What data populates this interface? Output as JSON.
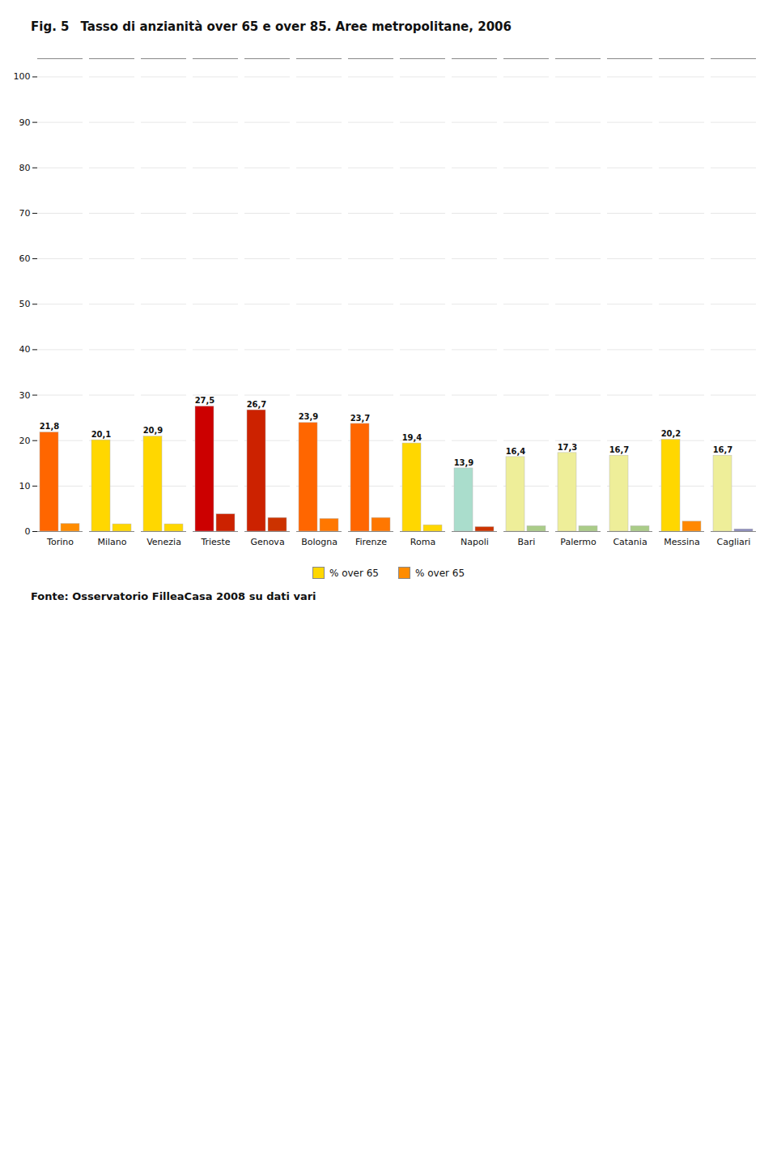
{
  "chart_data": {
    "type": "bar",
    "figure_label": "Fig. 5",
    "title": "Tasso di anzianità over 65 e over 85. Aree metropolitane, 2006",
    "source": "Fonte: Osservatorio FilleaCasa 2008 su dati vari",
    "categories": [
      "Torino",
      "Milano",
      "Venezia",
      "Trieste",
      "Genova",
      "Bologna",
      "Firenze",
      "Roma",
      "Napoli",
      "Bari",
      "Palermo",
      "Catania",
      "Messina",
      "Cagliari"
    ],
    "series": [
      {
        "name": "% over 65",
        "color": "#FFD700",
        "colors": [
          "#FF6600",
          "#FFD700",
          "#FFD700",
          "#CC0000",
          "#CC2200",
          "#FF6600",
          "#FF6600",
          "#FFD700",
          "#AADDCC",
          "#EEEE99",
          "#EEEE99",
          "#EEEE99",
          "#FFD700",
          "#EEEE99"
        ],
        "values": [
          21.8,
          20.1,
          20.9,
          27.5,
          26.7,
          23.9,
          23.7,
          19.4,
          13.9,
          16.4,
          17.3,
          16.7,
          20.2,
          16.7
        ],
        "value_labels": [
          "21,8",
          "20,1",
          "20,9",
          "27,5",
          "26,7",
          "23,9",
          "23,7",
          "19,4",
          "13,9",
          "16,4",
          "17,3",
          "16,7",
          "20,2",
          "16,7"
        ]
      },
      {
        "name": "% over 65",
        "color": "#FF8C00",
        "colors": [
          "#FF8C00",
          "#FFD700",
          "#FFD700",
          "#CC2200",
          "#CC3300",
          "#FF7700",
          "#FF7700",
          "#FFD700",
          "#CC3300",
          "#AACC88",
          "#AACC88",
          "#AACC88",
          "#FF8800",
          "#8888BB"
        ],
        "values": [
          1.7,
          1.6,
          1.6,
          3.8,
          3.0,
          2.8,
          3.0,
          1.4,
          1.0,
          1.2,
          1.2,
          1.2,
          2.2,
          0.5
        ]
      }
    ],
    "ylim": [
      0,
      104
    ],
    "yticks": [
      0,
      10,
      20,
      30,
      40,
      50,
      60,
      70,
      80,
      90,
      100
    ],
    "grid": true,
    "legend": "bottom",
    "data_labels": true
  }
}
